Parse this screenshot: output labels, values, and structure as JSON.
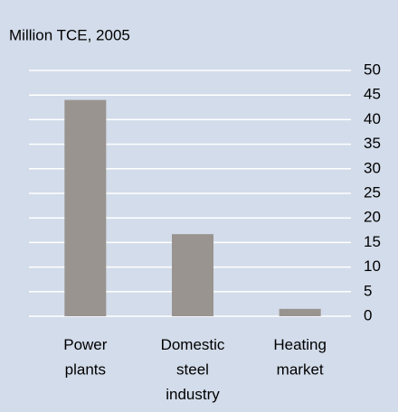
{
  "chart_data": {
    "type": "bar",
    "title": "Million TCE, 2005",
    "categories": [
      "Power plants",
      "Domestic steel industry",
      "Heating market"
    ],
    "values": [
      44,
      16.7,
      1.5
    ],
    "color": "#999490",
    "ylim": [
      0,
      50
    ],
    "yticks": [
      0,
      5,
      10,
      15,
      20,
      25,
      30,
      35,
      40,
      45,
      50
    ],
    "grid": true,
    "y_axis_side": "right"
  }
}
